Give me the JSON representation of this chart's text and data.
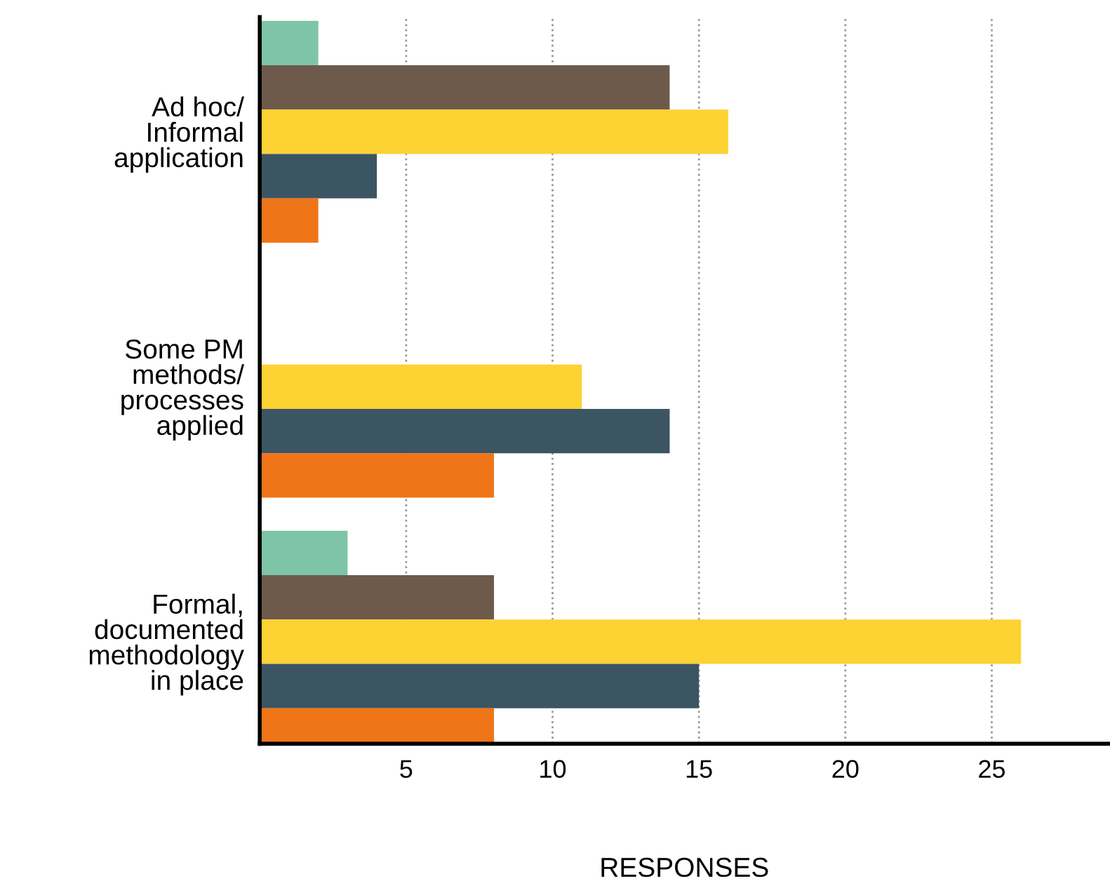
{
  "chart_data": {
    "type": "bar",
    "orientation": "horizontal",
    "categories": [
      "Ad hoc/\nInformal\napplication",
      "Some PM\nmethods/\nprocesses\napplied",
      "Formal,\ndocumented\nmethodology\nin place"
    ],
    "series": [
      {
        "color": "#7dc4a8",
        "values": [
          2,
          0,
          3
        ]
      },
      {
        "color": "#6e5a4b",
        "values": [
          14,
          0,
          8
        ]
      },
      {
        "color": "#fdd233",
        "values": [
          16,
          11,
          26
        ]
      },
      {
        "color": "#3b5562",
        "values": [
          4,
          14,
          15
        ]
      },
      {
        "color": "#ef7518",
        "values": [
          2,
          8,
          8
        ]
      }
    ],
    "xlim": [
      0,
      29
    ],
    "xticks": [
      5,
      10,
      15,
      20,
      25
    ],
    "xlabel": "RESPONSES",
    "grid": "x"
  }
}
